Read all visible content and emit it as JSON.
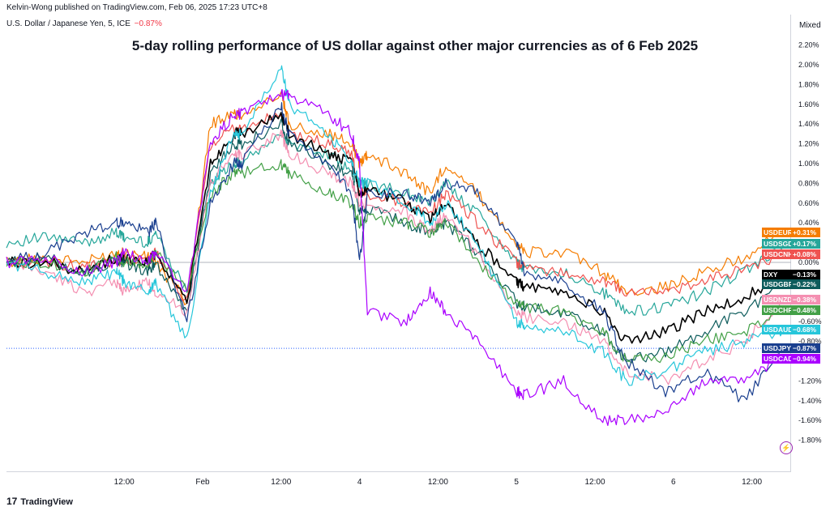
{
  "header": {
    "publisher": "Kelvin-Wong published on TradingView.com, Feb 06, 2025 17:23 UTC+8",
    "symbol": "U.S. Dollar / Japanese Yen, 5, ICE",
    "change": "−0.87%",
    "scale_mode": "Mixed"
  },
  "footer": {
    "brand": "TradingView"
  },
  "colors": {
    "USDEUR": "#f57c00",
    "USDSGD": "#26a69a",
    "USDCNH": "#ef5350",
    "DXY": "#000000",
    "USDGBP": "#0d5c5c",
    "USDNZD": "#f48fb1",
    "USDCHF": "#43a047",
    "USDAUD": "#26c6da",
    "USDJPY": "#1a3f8f",
    "USDCAD": "#aa00ff"
  },
  "chart_data": {
    "type": "line",
    "title": "5-day rolling performance of US dollar against other major currencies as of 6 Feb 2025",
    "ylabel": "",
    "ylim": [
      -2.0,
      2.2
    ],
    "y_ticks": [
      "2.20%",
      "2.00%",
      "1.80%",
      "1.60%",
      "1.40%",
      "1.20%",
      "1.00%",
      "0.80%",
      "0.60%",
      "0.40%",
      "0.00%",
      "-0.60%",
      "-0.80%",
      "-1.20%",
      "-1.40%",
      "-1.60%",
      "-1.80%"
    ],
    "x_ticks": [
      "12:00",
      "Feb",
      "12:00",
      "4",
      "12:00",
      "5",
      "12:00",
      "6",
      "12:00"
    ],
    "x_tick_pos": [
      0.5,
      1.0,
      1.5,
      2.0,
      2.5,
      3.0,
      3.5,
      4.0,
      4.5
    ],
    "x_range": [
      -0.25,
      4.75
    ],
    "x": [
      -0.25,
      0.0,
      0.25,
      0.45,
      0.5,
      0.65,
      0.7,
      0.9,
      1.05,
      1.2,
      1.25,
      1.5,
      1.55,
      1.8,
      1.95,
      2.0,
      2.05,
      2.3,
      2.45,
      2.55,
      2.75,
      3.0,
      3.05,
      3.3,
      3.55,
      3.7,
      3.95,
      4.2,
      4.45,
      4.7
    ],
    "series": [
      {
        "name": "USDEUR",
        "last": "+0.31%",
        "values": [
          0.0,
          0.05,
          0.0,
          0.1,
          0.1,
          0.05,
          0.0,
          -0.4,
          1.4,
          1.5,
          1.5,
          1.7,
          1.4,
          1.3,
          1.2,
          1.0,
          1.1,
          0.9,
          0.7,
          1.0,
          0.7,
          0.2,
          0.1,
          0.1,
          -0.1,
          -0.3,
          -0.25,
          -0.1,
          0.05,
          0.31
        ]
      },
      {
        "name": "USDSGD",
        "last": "+0.17%",
        "values": [
          0.2,
          0.25,
          0.2,
          0.3,
          0.25,
          0.2,
          0.3,
          -0.3,
          0.8,
          1.0,
          1.0,
          1.3,
          1.2,
          1.1,
          0.9,
          0.8,
          0.8,
          0.7,
          0.6,
          0.8,
          0.5,
          0.0,
          -0.05,
          -0.1,
          -0.3,
          -0.5,
          -0.45,
          -0.3,
          -0.1,
          0.17
        ]
      },
      {
        "name": "USDCNH",
        "last": "+0.08%",
        "values": [
          0.0,
          0.0,
          -0.05,
          0.0,
          0.05,
          0.0,
          0.1,
          -0.4,
          1.2,
          1.35,
          1.35,
          1.5,
          1.3,
          1.2,
          1.1,
          0.7,
          0.7,
          0.6,
          0.5,
          0.7,
          0.4,
          0.0,
          -0.05,
          -0.1,
          -0.2,
          -0.3,
          -0.3,
          -0.2,
          -0.05,
          0.08
        ]
      },
      {
        "name": "DXY",
        "last": "-0.13%",
        "values": [
          0.0,
          0.0,
          -0.1,
          0.05,
          0.05,
          0.0,
          0.1,
          -0.4,
          1.0,
          1.3,
          1.3,
          1.5,
          1.3,
          1.1,
          1.0,
          0.7,
          0.75,
          0.6,
          0.45,
          0.6,
          0.2,
          -0.2,
          -0.25,
          -0.3,
          -0.5,
          -0.8,
          -0.7,
          -0.5,
          -0.35,
          -0.13
        ]
      },
      {
        "name": "USDGBP",
        "last": "-0.22%",
        "values": [
          0.0,
          0.05,
          -0.1,
          0.0,
          0.0,
          -0.1,
          0.0,
          -0.5,
          0.9,
          1.2,
          1.2,
          1.4,
          1.2,
          1.0,
          0.9,
          0.5,
          0.55,
          0.4,
          0.3,
          0.4,
          0.1,
          -0.4,
          -0.45,
          -0.5,
          -0.7,
          -1.0,
          -0.9,
          -0.7,
          -0.5,
          -0.22
        ]
      },
      {
        "name": "USDNZD",
        "last": "-0.38%",
        "values": [
          0.0,
          -0.1,
          -0.3,
          -0.2,
          -0.3,
          -0.2,
          -0.3,
          -0.5,
          0.8,
          1.1,
          1.1,
          1.3,
          1.1,
          0.9,
          0.8,
          0.6,
          0.6,
          0.5,
          0.3,
          0.5,
          0.1,
          -0.5,
          -0.55,
          -0.6,
          -0.8,
          -1.1,
          -1.2,
          -1.0,
          -0.8,
          -0.38
        ]
      },
      {
        "name": "USDCHF",
        "last": "-0.48%",
        "values": [
          0.0,
          0.0,
          -0.1,
          0.05,
          0.0,
          0.0,
          0.1,
          -0.3,
          0.7,
          0.9,
          0.9,
          1.0,
          0.9,
          0.7,
          0.6,
          0.4,
          0.45,
          0.4,
          0.3,
          0.4,
          0.0,
          -0.4,
          -0.45,
          -0.5,
          -0.7,
          -1.0,
          -0.95,
          -0.8,
          -0.7,
          -0.48
        ]
      },
      {
        "name": "USDAUD",
        "last": "-0.68%",
        "values": [
          0.0,
          -0.1,
          -0.2,
          -0.1,
          -0.2,
          -0.3,
          -0.2,
          -0.8,
          0.7,
          1.3,
          1.3,
          2.0,
          1.6,
          1.3,
          1.0,
          0.8,
          0.8,
          0.6,
          0.4,
          0.6,
          0.2,
          -0.6,
          -0.65,
          -0.7,
          -0.9,
          -1.2,
          -1.1,
          -0.9,
          -0.8,
          -0.68
        ]
      },
      {
        "name": "USDJPY",
        "last": "-0.87%",
        "values": [
          0.0,
          0.1,
          0.3,
          0.4,
          0.4,
          0.3,
          0.4,
          -0.6,
          0.6,
          1.0,
          1.0,
          1.6,
          1.3,
          1.0,
          0.7,
          0.0,
          0.7,
          0.7,
          0.6,
          0.8,
          0.7,
          0.2,
          -0.1,
          -0.2,
          -0.5,
          -1.0,
          -1.3,
          -1.1,
          -1.4,
          -0.87
        ]
      },
      {
        "name": "USDCAD",
        "last": "-0.94%",
        "values": [
          0.0,
          0.05,
          -0.1,
          0.0,
          0.1,
          0.0,
          0.1,
          -0.3,
          1.2,
          1.5,
          1.5,
          1.7,
          1.7,
          1.5,
          1.3,
          1.0,
          -0.5,
          -0.6,
          -0.3,
          -0.5,
          -0.8,
          -1.3,
          -1.35,
          -1.2,
          -1.6,
          -1.6,
          -1.5,
          -1.2,
          -1.2,
          -0.94
        ]
      }
    ]
  }
}
